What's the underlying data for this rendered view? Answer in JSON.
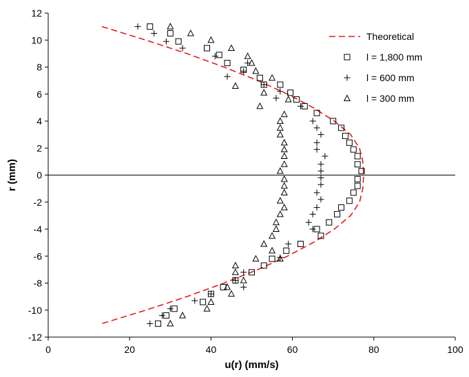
{
  "chart_data": {
    "type": "scatter",
    "xlabel": "u(r) (mm/s)",
    "ylabel": "r (mm)",
    "xlim": [
      0,
      100
    ],
    "ylim": [
      -12,
      12
    ],
    "xticks": [
      "0",
      "20",
      "40",
      "60",
      "80",
      "100"
    ],
    "yticks": [
      "-12",
      "-10",
      "-8",
      "-6",
      "-4",
      "-2",
      "0",
      "2",
      "4",
      "6",
      "8",
      "10",
      "12"
    ],
    "grid": false,
    "zero_line": true,
    "legend_position": "top-right",
    "series": [
      {
        "name": "Theoretical",
        "kind": "line",
        "style": "dashed",
        "color": "#e31a1c",
        "points": [
          [
            13.2,
            11.0
          ],
          [
            24.0,
            10.0
          ],
          [
            34.1,
            9.0
          ],
          [
            43.2,
            8.0
          ],
          [
            51.5,
            7.0
          ],
          [
            58.8,
            6.0
          ],
          [
            65.1,
            5.0
          ],
          [
            70.3,
            4.0
          ],
          [
            74.3,
            3.0
          ],
          [
            76.5,
            2.0
          ],
          [
            77.3,
            1.0
          ],
          [
            77.5,
            0.0
          ],
          [
            77.3,
            -1.0
          ],
          [
            76.5,
            -2.0
          ],
          [
            74.3,
            -3.0
          ],
          [
            70.3,
            -4.0
          ],
          [
            65.1,
            -5.0
          ],
          [
            58.8,
            -6.0
          ],
          [
            51.5,
            -7.0
          ],
          [
            43.2,
            -8.0
          ],
          [
            34.1,
            -9.0
          ],
          [
            24.0,
            -10.0
          ],
          [
            13.2,
            -11.0
          ]
        ]
      },
      {
        "name": "l = 1,800 mm",
        "kind": "scatter",
        "marker": "square",
        "points": [
          [
            25.0,
            11.0
          ],
          [
            30.0,
            10.5
          ],
          [
            32.0,
            9.9
          ],
          [
            39.0,
            9.4
          ],
          [
            42.0,
            8.9
          ],
          [
            44.0,
            8.3
          ],
          [
            48.0,
            7.8
          ],
          [
            52.0,
            7.2
          ],
          [
            53.0,
            6.7
          ],
          [
            57.0,
            6.7
          ],
          [
            59.5,
            6.1
          ],
          [
            61.0,
            5.6
          ],
          [
            63.0,
            5.1
          ],
          [
            66.0,
            4.6
          ],
          [
            70.0,
            4.0
          ],
          [
            72.0,
            3.5
          ],
          [
            73.0,
            2.9
          ],
          [
            74.0,
            2.4
          ],
          [
            75.0,
            1.9
          ],
          [
            76.0,
            1.4
          ],
          [
            76.0,
            0.8
          ],
          [
            77.0,
            0.3
          ],
          [
            76.0,
            -0.3
          ],
          [
            76.0,
            -0.8
          ],
          [
            75.0,
            -1.3
          ],
          [
            74.0,
            -1.9
          ],
          [
            72.0,
            -2.4
          ],
          [
            71.0,
            -2.9
          ],
          [
            69.0,
            -3.5
          ],
          [
            66.0,
            -4.0
          ],
          [
            67.0,
            -4.5
          ],
          [
            62.0,
            -5.1
          ],
          [
            58.5,
            -5.6
          ],
          [
            55.0,
            -6.2
          ],
          [
            53.0,
            -6.7
          ],
          [
            50.0,
            -7.2
          ],
          [
            46.0,
            -7.8
          ],
          [
            43.0,
            -8.3
          ],
          [
            40.0,
            -8.8
          ],
          [
            38.0,
            -9.4
          ],
          [
            31.0,
            -9.9
          ],
          [
            29.0,
            -10.4
          ],
          [
            27.0,
            -11.0
          ]
        ]
      },
      {
        "name": "l = 600 mm",
        "kind": "scatter",
        "marker": "plus",
        "points": [
          [
            22.0,
            11.0
          ],
          [
            26.0,
            10.5
          ],
          [
            29.0,
            9.9
          ],
          [
            33.0,
            9.4
          ],
          [
            41.0,
            8.8
          ],
          [
            44.0,
            7.3
          ],
          [
            48.0,
            7.7
          ],
          [
            49.0,
            8.3
          ],
          [
            53.0,
            6.7
          ],
          [
            56.0,
            5.7
          ],
          [
            57.0,
            6.2
          ],
          [
            62.0,
            5.1
          ],
          [
            65.0,
            4.0
          ],
          [
            66.0,
            3.5
          ],
          [
            67.0,
            3.0
          ],
          [
            66.0,
            2.4
          ],
          [
            66.0,
            1.9
          ],
          [
            68.0,
            1.4
          ],
          [
            67.0,
            0.8
          ],
          [
            67.0,
            0.3
          ],
          [
            67.0,
            -0.2
          ],
          [
            67.0,
            -0.7
          ],
          [
            66.0,
            -1.3
          ],
          [
            67.0,
            -1.8
          ],
          [
            66.0,
            -2.4
          ],
          [
            65.0,
            -2.9
          ],
          [
            64.0,
            -3.5
          ],
          [
            65.0,
            -4.0
          ],
          [
            59.0,
            -5.1
          ],
          [
            57.0,
            -6.1
          ],
          [
            48.0,
            -7.2
          ],
          [
            46.0,
            -7.8
          ],
          [
            48.0,
            -8.3
          ],
          [
            40.0,
            -8.8
          ],
          [
            36.0,
            -9.3
          ],
          [
            30.0,
            -9.9
          ],
          [
            28.0,
            -10.4
          ],
          [
            25.0,
            -11.0
          ]
        ]
      },
      {
        "name": "l = 300 mm",
        "kind": "scatter",
        "marker": "triangle",
        "points": [
          [
            30.0,
            11.0
          ],
          [
            35.0,
            10.5
          ],
          [
            40.0,
            10.0
          ],
          [
            45.0,
            9.4
          ],
          [
            49.0,
            8.8
          ],
          [
            50.0,
            8.3
          ],
          [
            51.0,
            7.7
          ],
          [
            55.0,
            7.2
          ],
          [
            46.0,
            6.6
          ],
          [
            53.0,
            6.1
          ],
          [
            59.0,
            5.6
          ],
          [
            52.0,
            5.1
          ],
          [
            58.0,
            4.5
          ],
          [
            57.0,
            4.0
          ],
          [
            57.0,
            3.5
          ],
          [
            57.0,
            3.0
          ],
          [
            58.0,
            2.4
          ],
          [
            58.0,
            1.9
          ],
          [
            58.0,
            1.4
          ],
          [
            58.0,
            0.8
          ],
          [
            57.0,
            0.3
          ],
          [
            58.0,
            -0.3
          ],
          [
            58.0,
            -0.8
          ],
          [
            58.0,
            -1.3
          ],
          [
            57.0,
            -1.9
          ],
          [
            58.0,
            -2.4
          ],
          [
            57.0,
            -2.9
          ],
          [
            56.0,
            -3.5
          ],
          [
            56.0,
            -4.0
          ],
          [
            55.0,
            -4.5
          ],
          [
            53.0,
            -5.1
          ],
          [
            55.0,
            -5.6
          ],
          [
            57.0,
            -6.2
          ],
          [
            51.0,
            -6.2
          ],
          [
            46.0,
            -6.7
          ],
          [
            46.0,
            -7.2
          ],
          [
            48.0,
            -7.8
          ],
          [
            44.0,
            -8.3
          ],
          [
            45.0,
            -8.8
          ],
          [
            40.0,
            -9.4
          ],
          [
            39.0,
            -9.9
          ],
          [
            33.0,
            -10.4
          ],
          [
            30.0,
            -11.0
          ]
        ]
      }
    ]
  }
}
